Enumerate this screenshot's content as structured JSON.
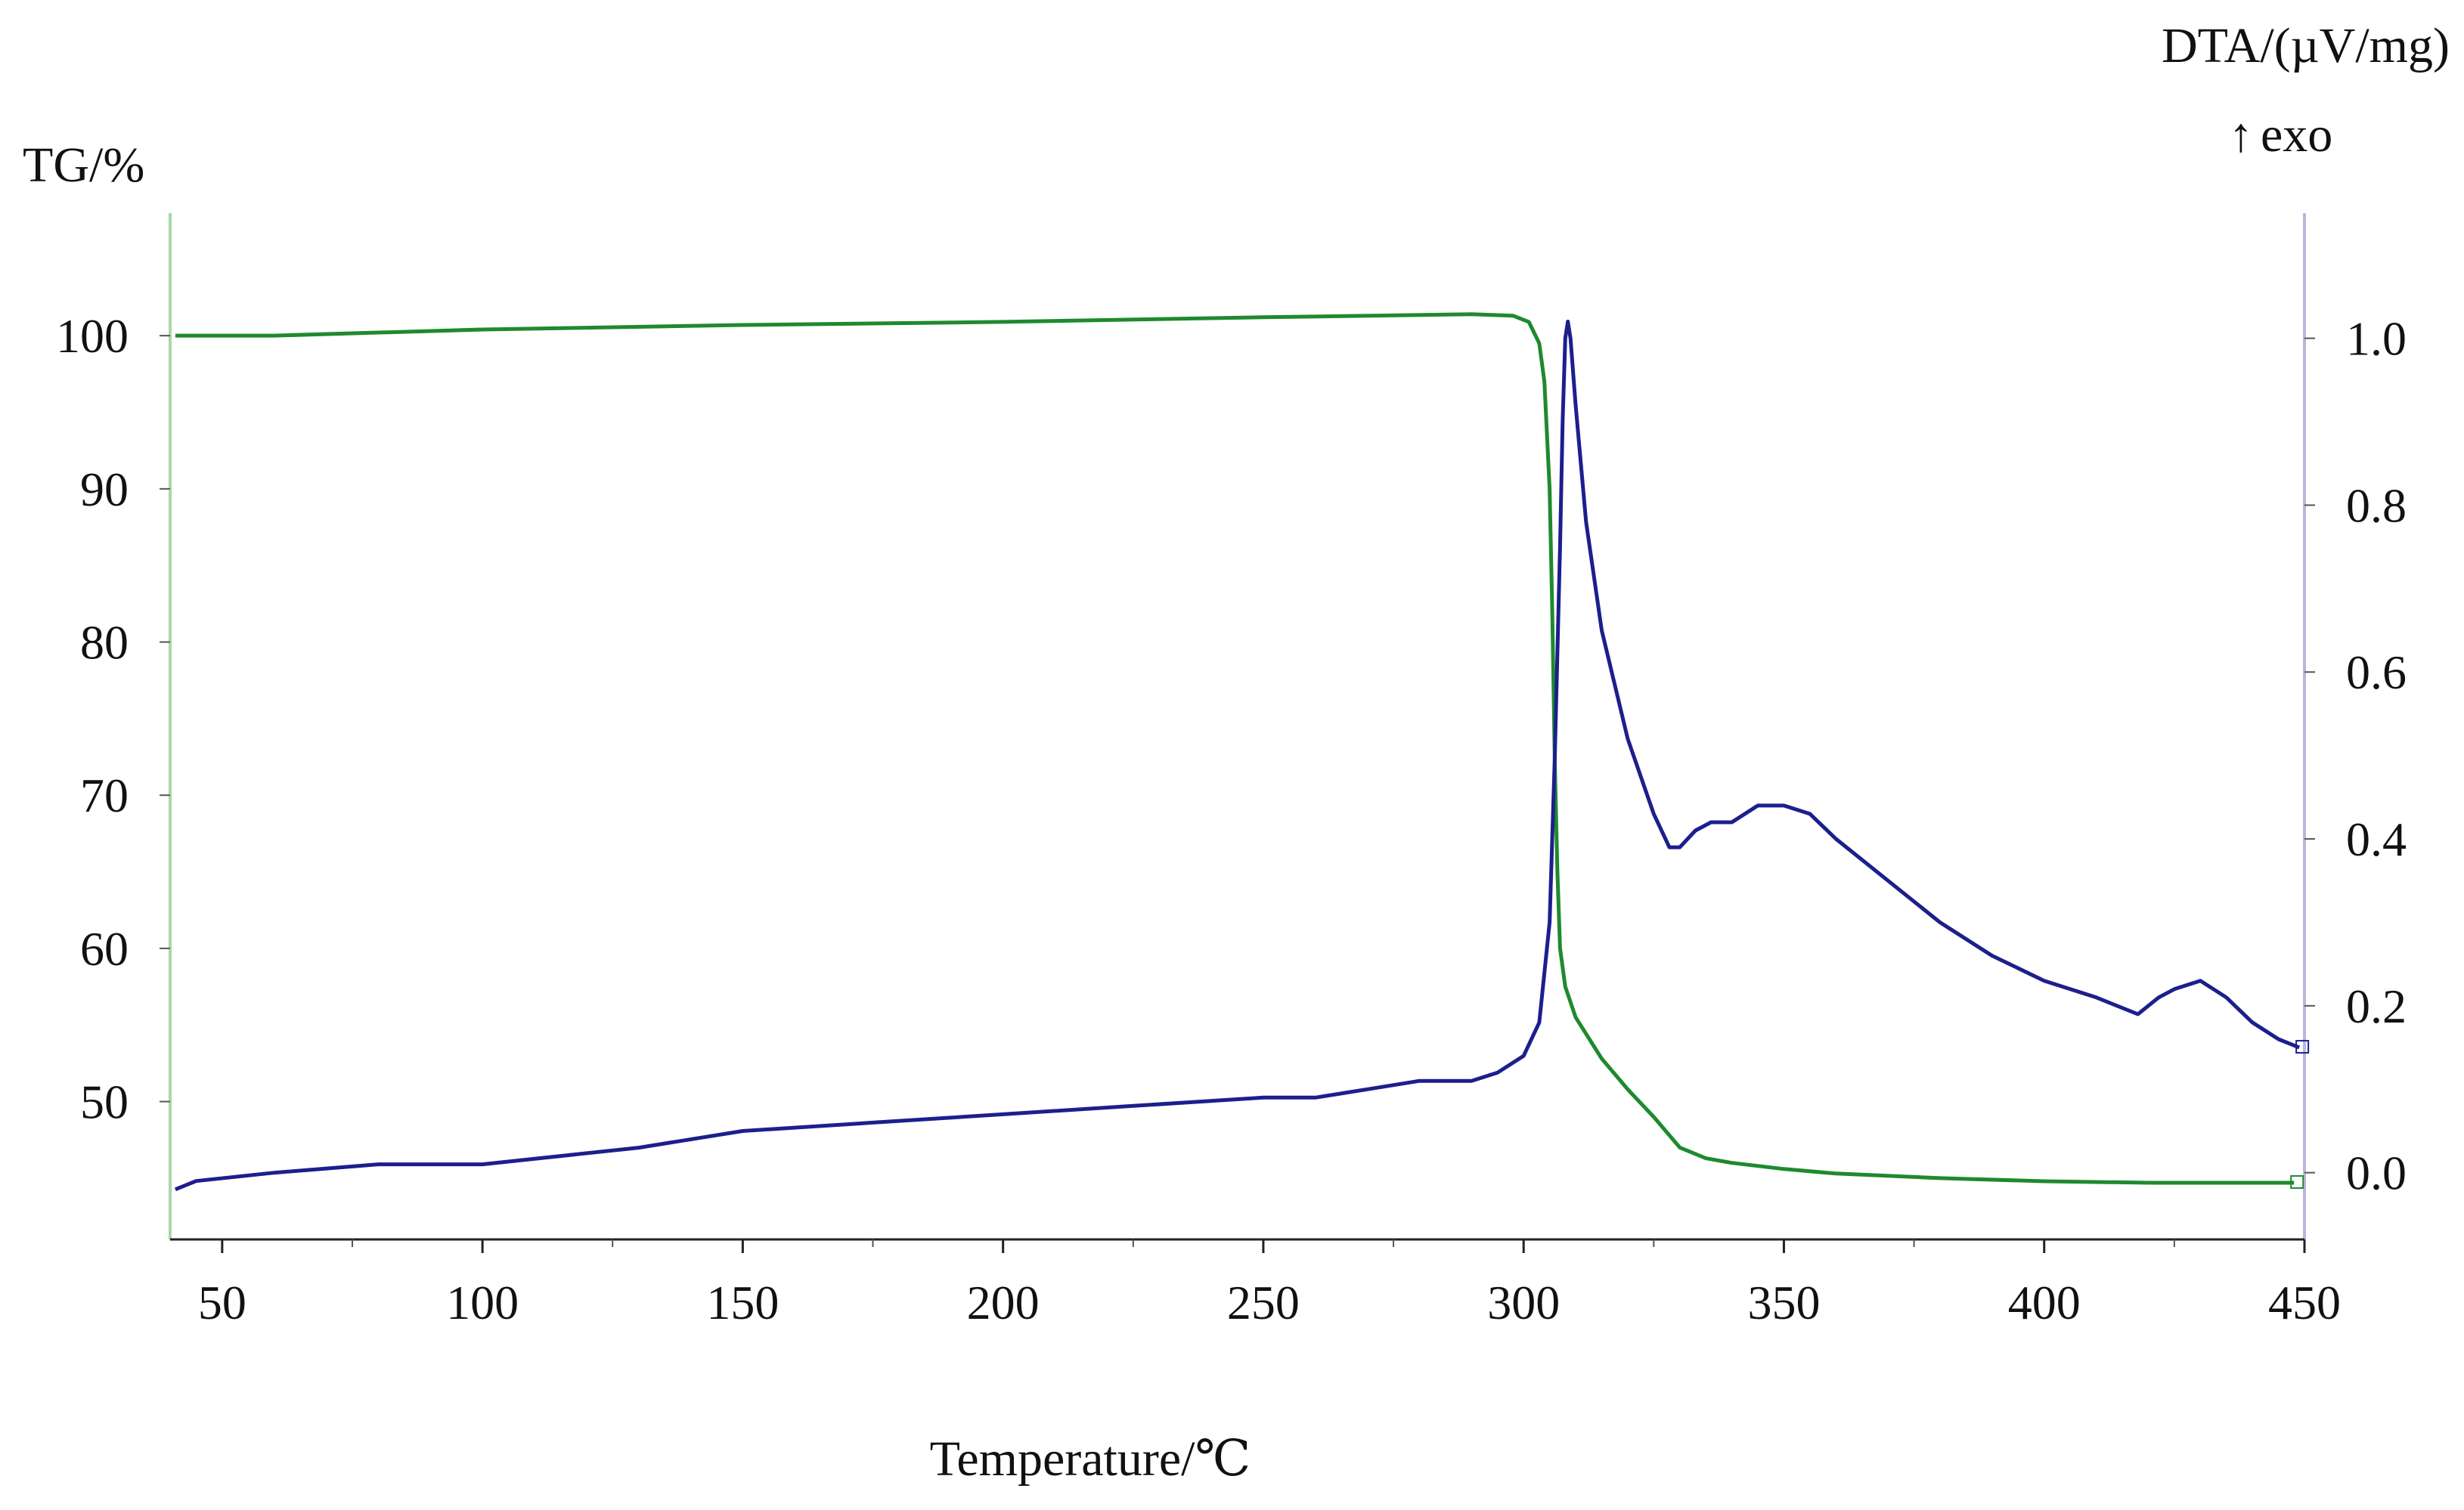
{
  "chart_data": {
    "type": "line",
    "xlabel": "Temperature/℃",
    "ylabel_left": "TG/%",
    "ylabel_right": "DTA/(µV/mg)",
    "annotation": "exo",
    "xlim": [
      40,
      450
    ],
    "ylim_left": [
      41,
      108
    ],
    "ylim_right": [
      -0.08,
      1.15
    ],
    "x_ticks": [
      50,
      100,
      150,
      200,
      250,
      300,
      350,
      400,
      450
    ],
    "y_ticks_left": [
      50,
      60,
      70,
      80,
      90,
      100
    ],
    "y_ticks_right": [
      "0.0",
      "0.2",
      "0.4",
      "0.6",
      "0.8",
      "1.0"
    ],
    "grid": false,
    "series": [
      {
        "axis": "left",
        "color": "#1e8a2e",
        "points": [
          [
            41,
            100.0
          ],
          [
            60,
            100.0
          ],
          [
            100,
            100.4
          ],
          [
            150,
            100.7
          ],
          [
            200,
            100.9
          ],
          [
            250,
            101.2
          ],
          [
            290,
            101.4
          ],
          [
            298,
            101.3
          ],
          [
            301,
            100.9
          ],
          [
            303,
            99.5
          ],
          [
            304,
            97.0
          ],
          [
            305,
            90.0
          ],
          [
            305.5,
            82.0
          ],
          [
            306,
            72.0
          ],
          [
            306.5,
            65.0
          ],
          [
            307,
            60.0
          ],
          [
            308,
            57.5
          ],
          [
            310,
            55.5
          ],
          [
            315,
            52.8
          ],
          [
            320,
            50.8
          ],
          [
            325,
            49.0
          ],
          [
            330,
            47.0
          ],
          [
            335,
            46.3
          ],
          [
            340,
            46.0
          ],
          [
            350,
            45.6
          ],
          [
            360,
            45.3
          ],
          [
            380,
            45.0
          ],
          [
            400,
            44.8
          ],
          [
            420,
            44.7
          ],
          [
            448,
            44.7
          ]
        ]
      },
      {
        "axis": "right",
        "color": "#1c1f8c",
        "points": [
          [
            41,
            -0.02
          ],
          [
            45,
            -0.01
          ],
          [
            60,
            0.0
          ],
          [
            80,
            0.01
          ],
          [
            100,
            0.01
          ],
          [
            115,
            0.02
          ],
          [
            130,
            0.03
          ],
          [
            150,
            0.05
          ],
          [
            175,
            0.06
          ],
          [
            200,
            0.07
          ],
          [
            225,
            0.08
          ],
          [
            250,
            0.09
          ],
          [
            260,
            0.09
          ],
          [
            270,
            0.1
          ],
          [
            280,
            0.11
          ],
          [
            290,
            0.11
          ],
          [
            295,
            0.12
          ],
          [
            300,
            0.14
          ],
          [
            303,
            0.18
          ],
          [
            305,
            0.3
          ],
          [
            306,
            0.5
          ],
          [
            307,
            0.75
          ],
          [
            307.5,
            0.9
          ],
          [
            308,
            1.0
          ],
          [
            308.5,
            1.02
          ],
          [
            309,
            1.0
          ],
          [
            310,
            0.92
          ],
          [
            312,
            0.78
          ],
          [
            315,
            0.65
          ],
          [
            320,
            0.52
          ],
          [
            325,
            0.43
          ],
          [
            328,
            0.39
          ],
          [
            330,
            0.39
          ],
          [
            333,
            0.41
          ],
          [
            336,
            0.42
          ],
          [
            340,
            0.42
          ],
          [
            345,
            0.44
          ],
          [
            350,
            0.44
          ],
          [
            355,
            0.43
          ],
          [
            360,
            0.4
          ],
          [
            370,
            0.35
          ],
          [
            380,
            0.3
          ],
          [
            390,
            0.26
          ],
          [
            400,
            0.23
          ],
          [
            410,
            0.21
          ],
          [
            418,
            0.19
          ],
          [
            422,
            0.21
          ],
          [
            425,
            0.22
          ],
          [
            430,
            0.23
          ],
          [
            435,
            0.21
          ],
          [
            440,
            0.18
          ],
          [
            445,
            0.16
          ],
          [
            449,
            0.15
          ]
        ]
      }
    ]
  }
}
